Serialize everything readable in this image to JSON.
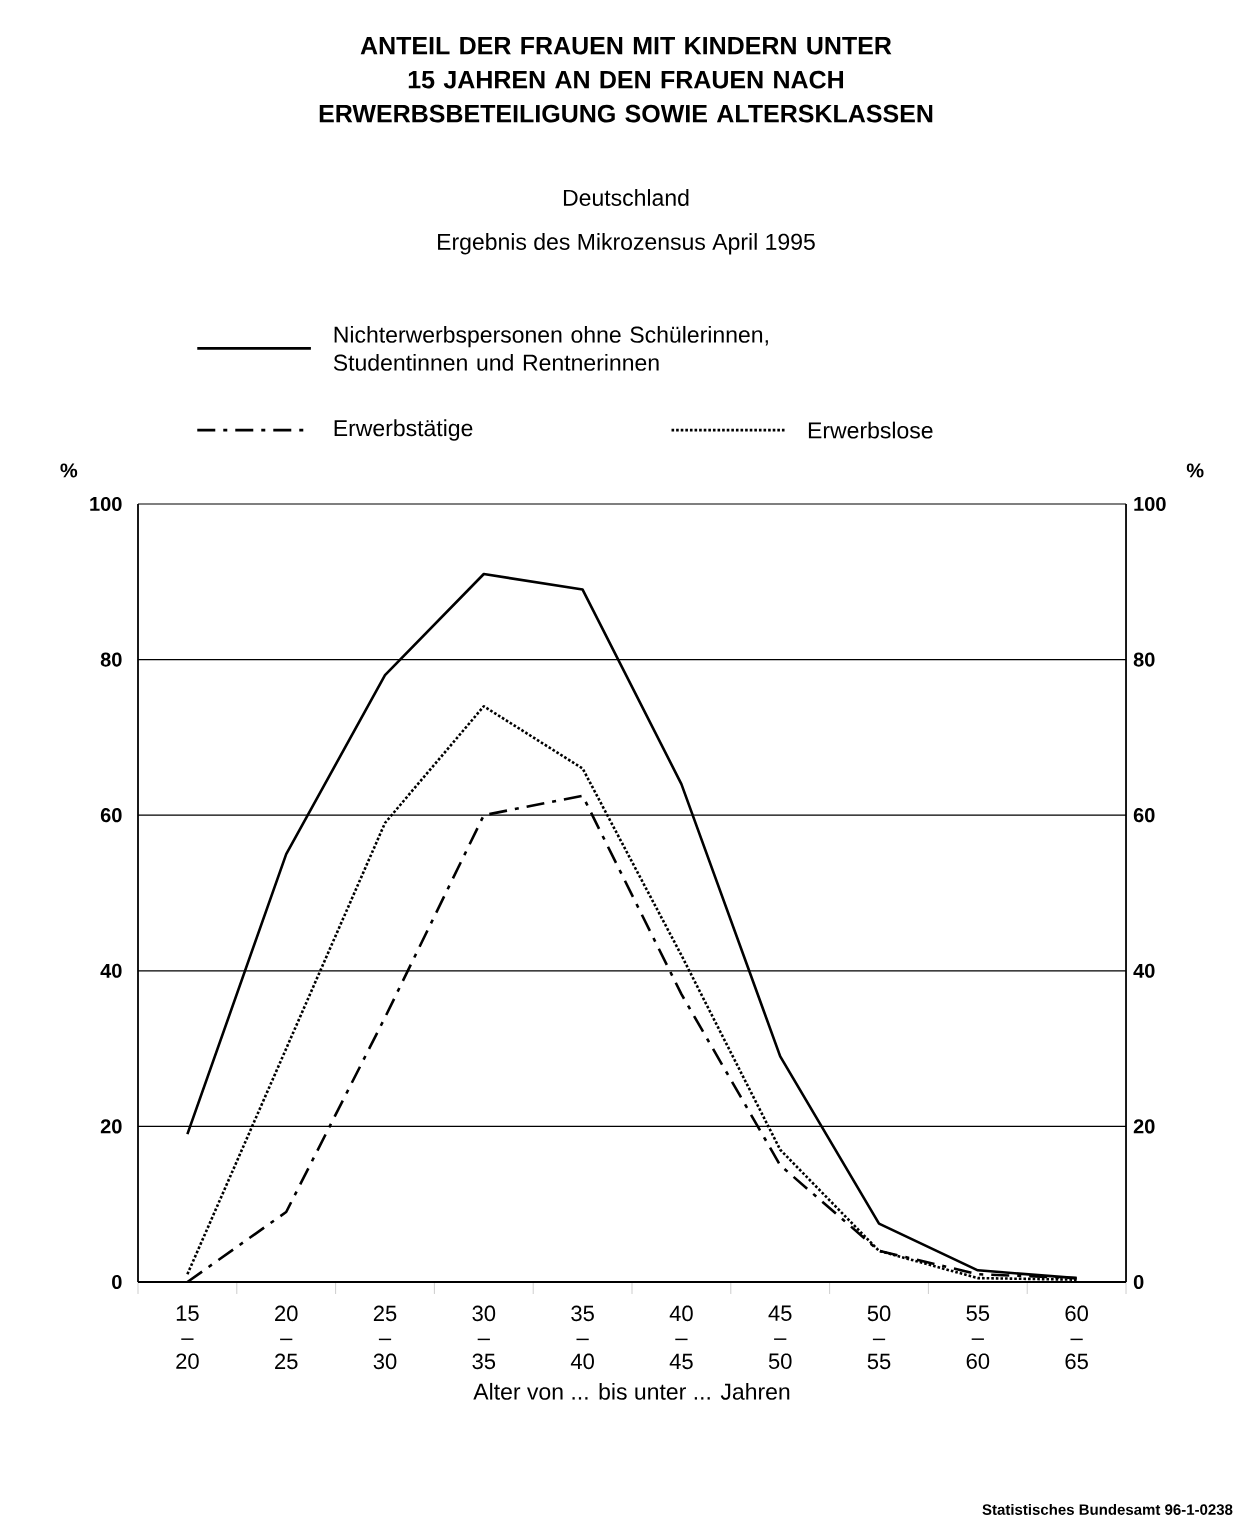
{
  "chart_data": {
    "type": "line",
    "title": "ANTEIL DER FRAUEN MIT KINDERN UNTER 15 JAHREN AN DEN FRAUEN NACH ERWERBSBETEILIGUNG SOWIE ALTERSKLASSEN",
    "subtitle": "Deutschland",
    "annotations": [
      "Ergebnis des Mikrozensus April 1995",
      "Statistisches Bundesamt 96-1-0238"
    ],
    "xlabel": "Alter von ... bis unter ... Jahren",
    "ylabel": "%",
    "y2label": "%",
    "categories": [
      "15 – 20",
      "20 – 25",
      "25 – 30",
      "30 – 35",
      "35 – 40",
      "40 – 45",
      "45 – 50",
      "50 – 55",
      "55 – 60",
      "60 – 65"
    ],
    "series": [
      {
        "name": "Nichterwerbspersonen ohne Schülerinnen, Studentinnen und Rentnerinnen",
        "color": "#000000",
        "line_style": "solid",
        "values": [
          19,
          55,
          78,
          91,
          89,
          64,
          29,
          7.5,
          1.5,
          0.5
        ]
      },
      {
        "name": "Erwerbstätige",
        "color": "#000000",
        "line_style": "dashdot",
        "values": [
          0,
          9,
          34,
          60,
          62.5,
          37,
          15,
          4,
          1,
          0.5
        ]
      },
      {
        "name": "Erwerbslose",
        "color": "#000000",
        "line_style": "dotted",
        "values": [
          1,
          30,
          59,
          74,
          66,
          42,
          17,
          4,
          0.5,
          0.3
        ]
      }
    ],
    "ylim": [
      0,
      100
    ],
    "yticks": [
      0,
      20,
      40,
      60,
      80,
      100
    ],
    "y2lim": [
      0,
      100
    ],
    "y2ticks": [
      0,
      20,
      40,
      60,
      80,
      100
    ],
    "grid": "y",
    "legend": "top",
    "marker": "none"
  }
}
